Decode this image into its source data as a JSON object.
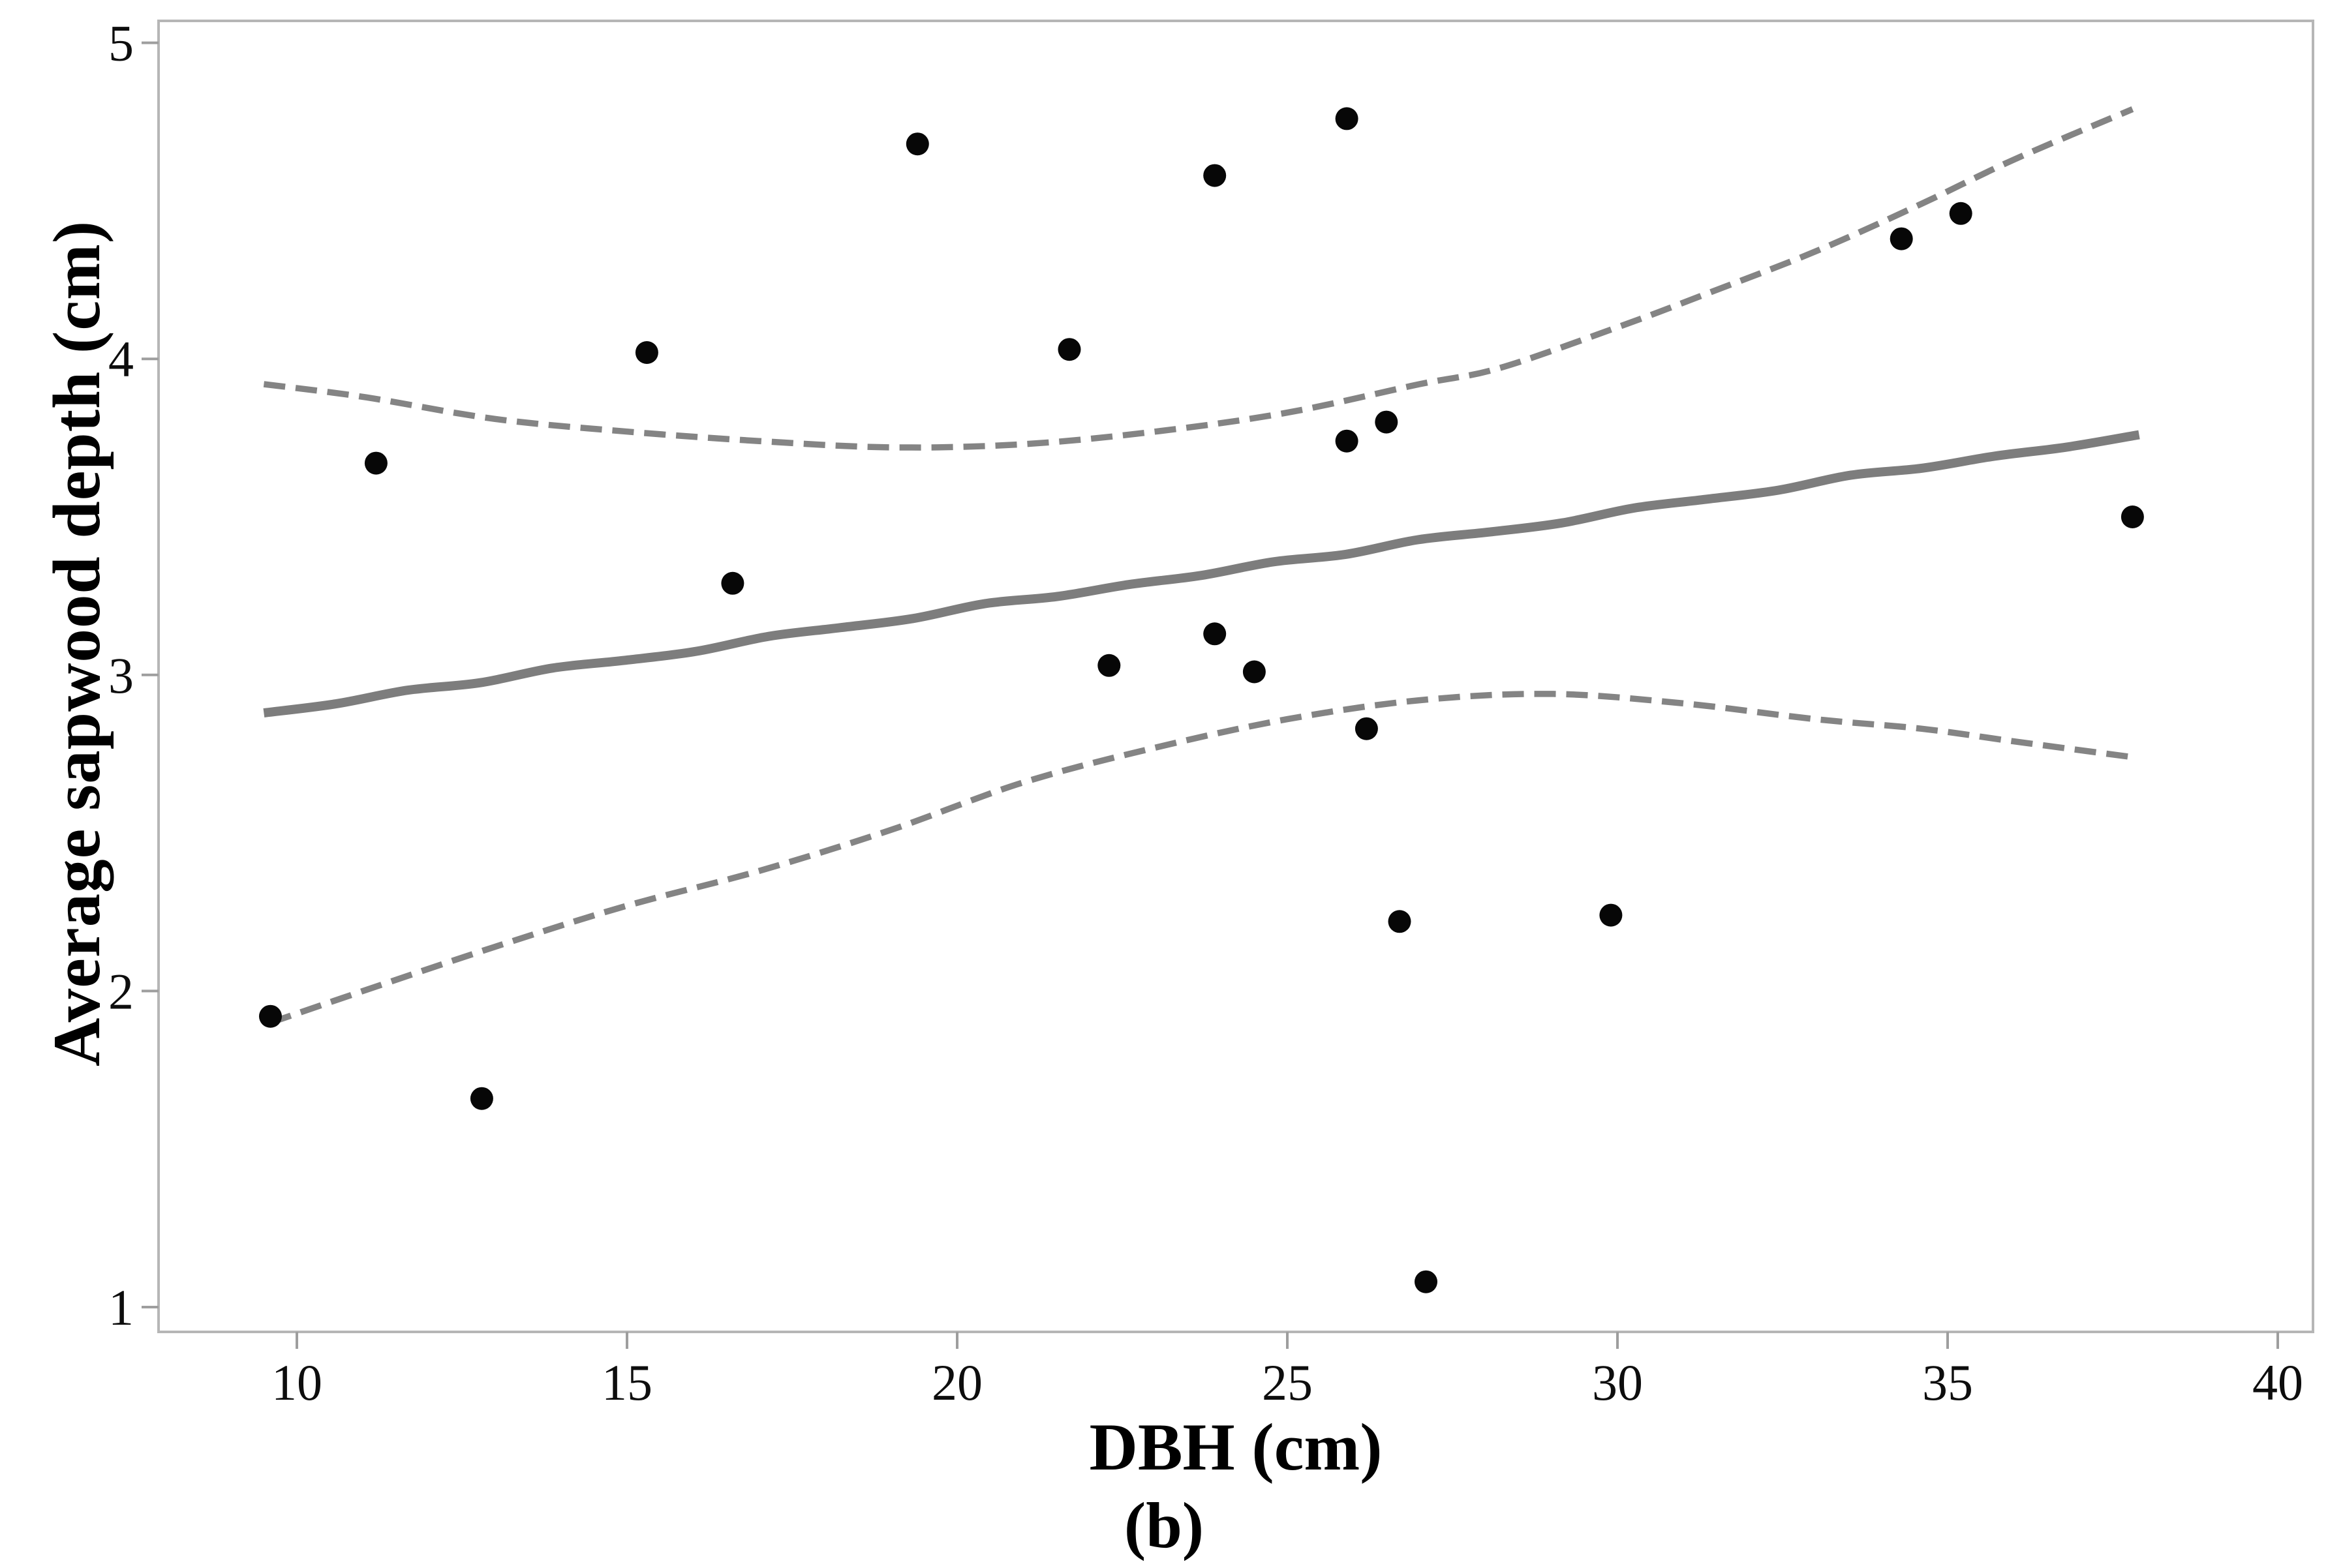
{
  "figure": {
    "caption": "(b)",
    "background_color": "#ffffff"
  },
  "chart_data": {
    "type": "scatter",
    "title": "",
    "xlabel": "DBH (cm)",
    "ylabel": "Average sapwood depth (cm)",
    "xlim": [
      7.9,
      40.5
    ],
    "ylim": [
      0.92,
      5.07
    ],
    "x_ticks": [
      10,
      15,
      20,
      25,
      30,
      35,
      40
    ],
    "y_ticks": [
      1,
      2,
      3,
      4,
      5
    ],
    "grid": false,
    "legend": "none",
    "points": [
      [
        9.6,
        1.92
      ],
      [
        11.2,
        3.67
      ],
      [
        12.8,
        1.66
      ],
      [
        15.3,
        4.02
      ],
      [
        16.6,
        3.29
      ],
      [
        19.4,
        4.68
      ],
      [
        21.7,
        4.03
      ],
      [
        22.3,
        3.03
      ],
      [
        23.9,
        4.58
      ],
      [
        23.9,
        3.13
      ],
      [
        24.5,
        3.01
      ],
      [
        25.9,
        4.76
      ],
      [
        25.9,
        3.74
      ],
      [
        26.2,
        2.83
      ],
      [
        26.5,
        3.8
      ],
      [
        26.7,
        2.22
      ],
      [
        27.1,
        1.08
      ],
      [
        29.9,
        2.24
      ],
      [
        34.3,
        4.38
      ],
      [
        35.2,
        4.46
      ],
      [
        37.8,
        3.5
      ]
    ],
    "regression_line": {
      "style": "solid",
      "x": [
        9.5,
        37.9
      ],
      "y": [
        2.88,
        3.76
      ]
    },
    "ci_upper": {
      "style": "dashed",
      "x": [
        9.5,
        11,
        13,
        15,
        17,
        19,
        21,
        23,
        25,
        27,
        28.2,
        30,
        31.4,
        33,
        34.6,
        36,
        37.8
      ],
      "y": [
        3.92,
        3.88,
        3.81,
        3.77,
        3.74,
        3.72,
        3.73,
        3.77,
        3.83,
        3.92,
        3.97,
        4.1,
        4.21,
        4.34,
        4.49,
        4.63,
        4.79
      ]
    },
    "ci_lower": {
      "style": "dashed",
      "x": [
        9.6,
        11,
        13,
        15,
        17,
        19,
        21,
        23,
        25,
        27,
        29,
        31,
        33,
        34.6,
        36,
        37.8
      ],
      "y": [
        1.9,
        2.0,
        2.14,
        2.27,
        2.38,
        2.51,
        2.66,
        2.77,
        2.86,
        2.92,
        2.94,
        2.91,
        2.86,
        2.83,
        2.79,
        2.74
      ]
    },
    "colors": {
      "point": "#070707",
      "regression_line": "#7d7d7d",
      "ci_line": "#848484",
      "frame": "#b6b6b6",
      "tick": "#9e9e9e",
      "tick_label": "#0d0d0d"
    }
  }
}
